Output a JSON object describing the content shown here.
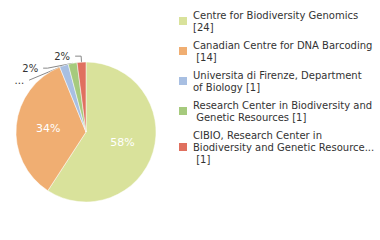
{
  "chart_data": {
    "type": "pie",
    "categories": [
      "Centre for Biodiversity Genomics [24]",
      "Canadian Centre for DNA Barcoding [14]",
      "Universita di Firenze, Department of Biology [1]",
      "Research Center in Biodiversity and Genetic Resources [1]",
      "CIBIO, Research Center in Biodiversity and Genetic Resource... [1]"
    ],
    "values": [
      58,
      34,
      2,
      2,
      2
    ],
    "value_labels": [
      "58%",
      "34%",
      "2%",
      "2%",
      "2%"
    ],
    "colors": [
      "#d9e29b",
      "#f0ae72",
      "#a8bfe2",
      "#a6ca7d",
      "#e0705f"
    ],
    "data_labels": true,
    "legend": "right"
  }
}
